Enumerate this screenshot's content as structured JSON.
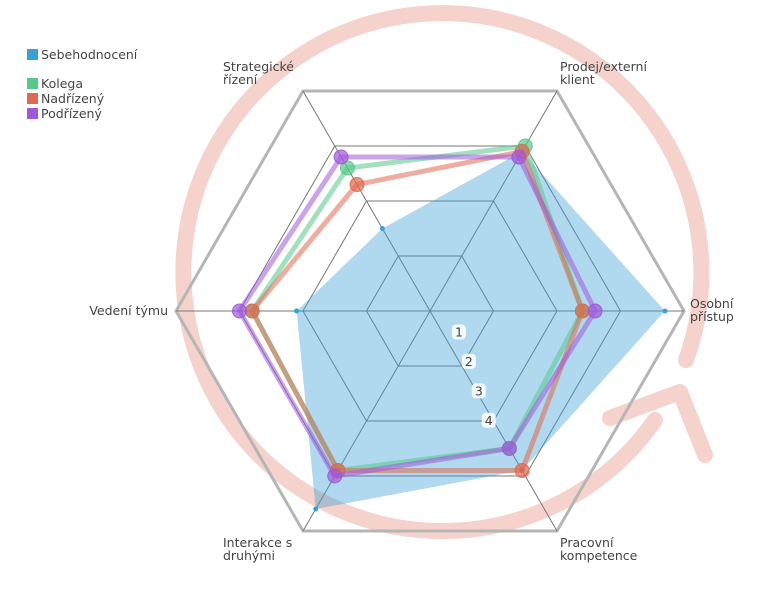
{
  "chart_data": {
    "type": "radar",
    "axes": [
      "Osobní přístup",
      "Pracovní kompetence",
      "Interakce s druhými",
      "Vedení týmu",
      "Strategické řízení",
      "Prodej/externí klient"
    ],
    "axis_labels_lines": [
      [
        "Osobní",
        "přístup"
      ],
      [
        "Pracovní",
        "kompetence"
      ],
      [
        "Interakce s",
        "druhými"
      ],
      [
        "Vedení týmu"
      ],
      [
        "Strategické",
        "řízení"
      ],
      [
        "Prodej/externí",
        "klient"
      ]
    ],
    "rlim": [
      0,
      4
    ],
    "ticks": [
      1,
      2,
      3,
      4
    ],
    "tick_labels": [
      "1",
      "2",
      "3",
      "4"
    ],
    "series": [
      {
        "name": "Sebehodnocení",
        "color": "#3a9fd6",
        "values": [
          3.7,
          2.9,
          3.6,
          2.1,
          1.5,
          2.9
        ]
      },
      {
        "name": "Kolega",
        "color": "#55c98a",
        "values": [
          2.4,
          2.5,
          2.9,
          2.8,
          2.6,
          3.0
        ]
      },
      {
        "name": "Nadřízený",
        "color": "#e0694f",
        "values": [
          2.4,
          2.9,
          2.9,
          2.8,
          2.3,
          2.9
        ]
      },
      {
        "name": "Podřízený",
        "color": "#a057d9",
        "values": [
          2.6,
          2.5,
          3.0,
          3.0,
          2.8,
          2.8
        ]
      }
    ],
    "legend_position": "top-left"
  }
}
